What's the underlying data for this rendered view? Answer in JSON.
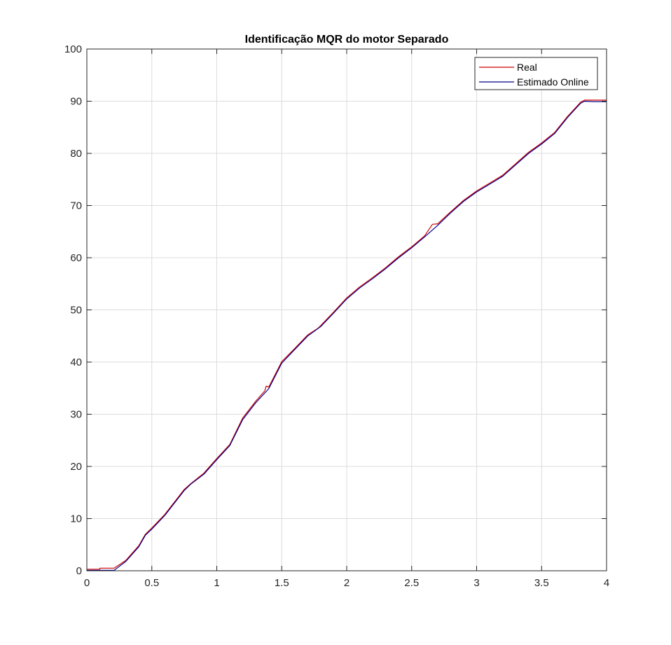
{
  "chart_data": {
    "type": "line",
    "title": "Identificação MQR do motor Separado",
    "xlabel": "",
    "ylabel": "",
    "xlim": [
      0,
      4
    ],
    "ylim": [
      0,
      100
    ],
    "x_ticks": [
      "0",
      "0.5",
      "1",
      "1.5",
      "2",
      "2.5",
      "3",
      "3.5",
      "4"
    ],
    "y_ticks": [
      "0",
      "10",
      "20",
      "30",
      "40",
      "50",
      "60",
      "70",
      "80",
      "90",
      "100"
    ],
    "grid": true,
    "legend_position": "top-right",
    "series": [
      {
        "name": "Real",
        "color": "#d00000",
        "x": [
          0,
          0.1,
          0.1,
          0.21,
          0.3,
          0.4,
          0.45,
          0.5,
          0.6,
          0.7,
          0.75,
          0.8,
          0.9,
          1.0,
          1.1,
          1.2,
          1.3,
          1.37,
          1.38,
          1.4,
          1.5,
          1.6,
          1.7,
          1.78,
          1.8,
          1.9,
          2.0,
          2.1,
          2.2,
          2.3,
          2.4,
          2.5,
          2.6,
          2.66,
          2.7,
          2.8,
          2.9,
          3.0,
          3.1,
          3.2,
          3.3,
          3.4,
          3.5,
          3.6,
          3.7,
          3.8,
          3.83,
          3.9,
          4.0
        ],
        "y": [
          0.3,
          0.3,
          0.5,
          0.5,
          2.0,
          4.8,
          7.0,
          8.2,
          10.8,
          14.0,
          15.6,
          16.7,
          18.7,
          21.5,
          24.2,
          29.3,
          32.5,
          34.5,
          35.4,
          35.2,
          40.1,
          42.6,
          45.2,
          46.5,
          47.0,
          49.6,
          52.3,
          54.4,
          56.2,
          58.1,
          60.2,
          62.1,
          64.2,
          66.4,
          66.5,
          68.8,
          71.0,
          72.8,
          74.3,
          75.8,
          78.0,
          80.2,
          82.0,
          84.0,
          87.1,
          89.8,
          90.2,
          90.2,
          90.2
        ]
      },
      {
        "name": "Estimado Online",
        "color": "#00008b",
        "x": [
          0,
          0.21,
          0.3,
          0.4,
          0.45,
          0.5,
          0.6,
          0.7,
          0.75,
          0.8,
          0.9,
          1.0,
          1.1,
          1.2,
          1.3,
          1.4,
          1.5,
          1.6,
          1.7,
          1.8,
          1.9,
          2.0,
          2.1,
          2.2,
          2.3,
          2.4,
          2.5,
          2.6,
          2.7,
          2.8,
          2.9,
          3.0,
          3.1,
          3.2,
          3.3,
          3.4,
          3.5,
          3.6,
          3.7,
          3.8,
          3.83,
          3.9,
          4.0
        ],
        "y": [
          0.1,
          0.1,
          1.8,
          4.6,
          6.8,
          8.0,
          10.6,
          13.8,
          15.4,
          16.6,
          18.5,
          21.3,
          24.0,
          29.0,
          32.2,
          34.9,
          39.8,
          42.4,
          45.0,
          46.8,
          49.4,
          52.1,
          54.2,
          56.0,
          57.9,
          60.0,
          61.9,
          64.0,
          66.2,
          68.6,
          70.8,
          72.6,
          74.1,
          75.6,
          77.8,
          80.0,
          81.8,
          83.8,
          86.9,
          89.6,
          90.0,
          89.9,
          89.9
        ]
      }
    ]
  }
}
